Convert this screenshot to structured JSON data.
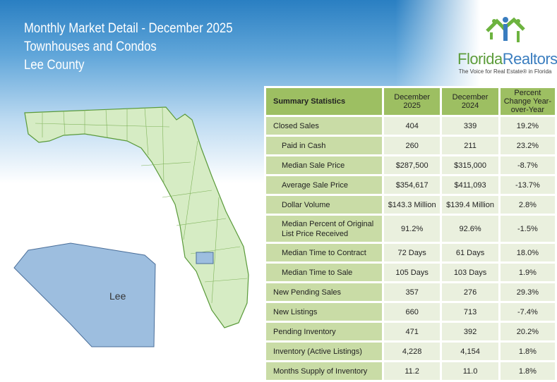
{
  "header": {
    "title": "Monthly Market Detail - December 2025",
    "subtitle": "Townhouses and Condos",
    "county": "Lee County"
  },
  "logo": {
    "brand_a": "Florida",
    "brand_b": "Realtors",
    "tagline": "The Voice for Real Estate® in Florida"
  },
  "map": {
    "inset_label": "Lee",
    "colors": {
      "state": "#d6ecc4",
      "county": "#9dbedf"
    }
  },
  "table": {
    "headers": [
      "Summary Statistics",
      "December 2025",
      "December 2024",
      "Percent Change Year-over-Year"
    ],
    "rows": [
      {
        "label": "Closed Sales",
        "cur": "404",
        "prev": "339",
        "pct": "19.2%"
      },
      {
        "label": "Paid in Cash",
        "cur": "260",
        "prev": "211",
        "pct": "23.2%"
      },
      {
        "label": "Median Sale Price",
        "cur": "$287,500",
        "prev": "$315,000",
        "pct": "-8.7%"
      },
      {
        "label": "Average Sale Price",
        "cur": "$354,617",
        "prev": "$411,093",
        "pct": "-13.7%"
      },
      {
        "label": "Dollar Volume",
        "cur": "$143.3 Million",
        "prev": "$139.4 Million",
        "pct": "2.8%"
      },
      {
        "label": "Median Percent of Original List Price Received",
        "cur": "91.2%",
        "prev": "92.6%",
        "pct": "-1.5%"
      },
      {
        "label": "Median Time to Contract",
        "cur": "72 Days",
        "prev": "61 Days",
        "pct": "18.0%"
      },
      {
        "label": "Median Time to Sale",
        "cur": "105 Days",
        "prev": "103 Days",
        "pct": "1.9%"
      },
      {
        "label": "New Pending Sales",
        "cur": "357",
        "prev": "276",
        "pct": "29.3%"
      },
      {
        "label": "New Listings",
        "cur": "660",
        "prev": "713",
        "pct": "-7.4%"
      },
      {
        "label": "Pending Inventory",
        "cur": "471",
        "prev": "392",
        "pct": "20.2%"
      },
      {
        "label": "Inventory (Active Listings)",
        "cur": "4,228",
        "prev": "4,154",
        "pct": "1.8%"
      },
      {
        "label": "Months Supply of Inventory",
        "cur": "11.2",
        "prev": "11.0",
        "pct": "1.8%"
      }
    ]
  }
}
